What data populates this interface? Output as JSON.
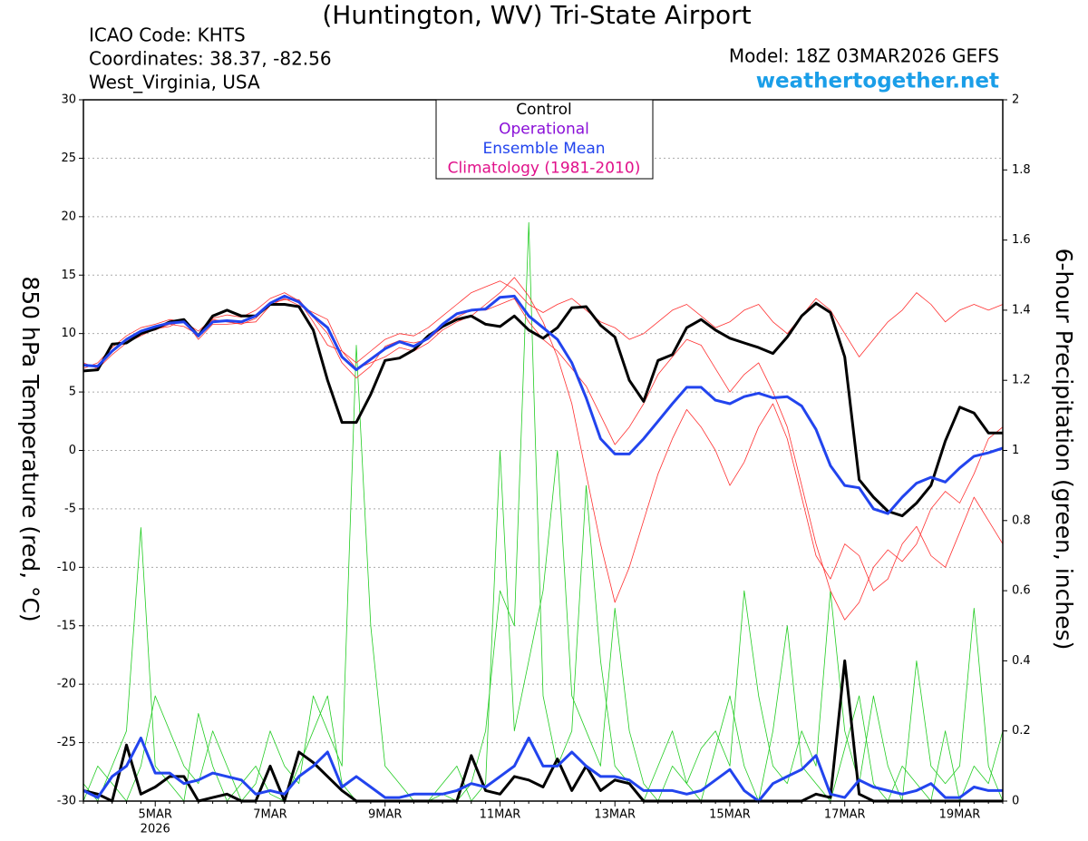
{
  "chart_data": {
    "type": "line",
    "title": "(Huntington, WV) Tri-State Airport",
    "info_left": [
      "ICAO Code: KHTS",
      "Coordinates: 38.37, -82.56",
      "West_Virginia, USA"
    ],
    "model": "Model: 18Z 03MAR2026 GEFS",
    "source": "weathertogether.net",
    "y_label": "850 hPa Temperature (red, °C)",
    "y2_label": "6-hour Precipitation (green, inches)",
    "year_label": "2026",
    "categories": [
      null,
      null,
      null,
      null,
      null,
      "5MAR",
      null,
      null,
      null,
      null,
      null,
      null,
      null,
      "7MAR",
      null,
      null,
      null,
      null,
      null,
      null,
      null,
      "9MAR",
      null,
      null,
      null,
      null,
      null,
      null,
      null,
      "11MAR",
      null,
      null,
      null,
      null,
      null,
      null,
      null,
      "13MAR",
      null,
      null,
      null,
      null,
      null,
      null,
      null,
      "15MAR",
      null,
      null,
      null,
      null,
      null,
      null,
      null,
      "17MAR",
      null,
      null,
      null,
      null,
      null,
      null,
      null,
      "19MAR",
      null,
      null,
      null
    ],
    "ylim": [
      -30,
      30
    ],
    "yticks": [
      -30,
      -25,
      -20,
      -15,
      -10,
      -5,
      0,
      5,
      10,
      15,
      20,
      25,
      30
    ],
    "y2lim": [
      0,
      2
    ],
    "y2ticks": [
      0,
      0.2,
      0.4,
      0.6,
      0.8,
      1,
      1.2,
      1.4,
      1.6,
      1.8,
      2
    ],
    "grid": true,
    "legend": [
      {
        "name": "Control",
        "color": "#000000"
      },
      {
        "name": "Operational",
        "color": "#8a10d8"
      },
      {
        "name": "Ensemble Mean",
        "color": "#2244ee"
      },
      {
        "name": "Climatology (1981-2010)",
        "color": "#e0108a"
      }
    ],
    "series": [
      {
        "color": "#22cc22",
        "axis": "y2",
        "line_width": 0.8,
        "values": [
          0.05,
          0,
          0.1,
          0.2,
          0.78,
          0.1,
          0.05,
          0,
          0.25,
          0.1,
          0,
          0.05,
          0.1,
          0.02,
          0,
          0.1,
          0.2,
          0.3,
          0.05,
          0,
          0,
          0,
          0,
          0,
          0,
          0.02,
          0,
          0.05,
          0.2,
          0.6,
          0.5,
          1.65,
          0.3,
          0.1,
          0.2,
          0.9,
          0.4,
          0.1,
          0.05,
          0,
          0.1,
          0.2,
          0.05,
          0,
          0.15,
          0.3,
          0.1,
          0,
          0.2,
          0.5,
          0.1,
          0.05,
          0,
          0.15,
          0.3,
          0.05,
          0,
          0.1,
          0.05,
          0,
          0.2,
          0,
          0.1,
          0.05,
          0.2
        ]
      },
      {
        "color": "#22cc22",
        "axis": "y2",
        "line_width": 0.8,
        "values": [
          0,
          0.1,
          0.05,
          0,
          0.1,
          0.3,
          0.2,
          0.1,
          0.05,
          0.2,
          0.1,
          0,
          0.05,
          0.2,
          0.1,
          0.05,
          0.3,
          0.2,
          0.1,
          1.3,
          0.5,
          0.1,
          0.05,
          0,
          0,
          0.05,
          0.1,
          0,
          0.05,
          1.0,
          0.2,
          0.4,
          0.6,
          1.0,
          0.3,
          0.2,
          0.1,
          0.55,
          0.2,
          0.05,
          0,
          0.1,
          0.05,
          0.15,
          0.2,
          0.1,
          0.6,
          0.3,
          0.1,
          0.05,
          0.2,
          0.1,
          0.6,
          0.2,
          0.05,
          0.3,
          0.1,
          0,
          0.4,
          0.1,
          0.05,
          0.1,
          0.55,
          0.1,
          0
        ]
      },
      {
        "color": "#ff3030",
        "line_width": 0.8,
        "values": [
          7.0,
          7.5,
          8.8,
          9.8,
          10.5,
          10.8,
          11.2,
          11.0,
          10.2,
          11.3,
          11.6,
          11.4,
          12.0,
          13.0,
          13.5,
          12.8,
          11.0,
          9.0,
          8.5,
          7.5,
          8.5,
          9.5,
          10.0,
          9.8,
          10.5,
          11.5,
          12.5,
          13.5,
          14.0,
          14.5,
          13.8,
          12.5,
          11.8,
          12.5,
          13.0,
          12.0,
          11.0,
          10.5,
          9.5,
          10.0,
          11.0,
          12.0,
          12.5,
          11.5,
          10.5,
          11.0,
          12.0,
          12.5,
          11.0,
          10.0,
          11.5,
          13.0,
          12.0,
          10.0,
          8.0,
          9.5,
          11.0,
          12.0,
          13.5,
          12.5,
          11.0,
          12.0,
          12.5,
          12.0,
          12.5
        ]
      },
      {
        "color": "#ff3030",
        "line_width": 0.8,
        "values": [
          7.5,
          7.0,
          8.2,
          9.2,
          9.8,
          10.4,
          10.6,
          11.2,
          9.5,
          10.8,
          10.8,
          10.9,
          11.0,
          12.4,
          13.0,
          12.4,
          11.8,
          11.2,
          8.5,
          7.0,
          7.5,
          8.0,
          8.8,
          8.5,
          9.2,
          10.3,
          11.0,
          11.5,
          12.5,
          13.5,
          14.8,
          13.2,
          11.0,
          8.0,
          4.0,
          -2.0,
          -8.0,
          -13.0,
          -10.0,
          -6.0,
          -2.0,
          1.0,
          3.5,
          2.0,
          0.0,
          -3.0,
          -1.0,
          2.0,
          4.0,
          1.0,
          -4.0,
          -9.0,
          -11.0,
          -8.0,
          -9.0,
          -12.0,
          -11.0,
          -8.0,
          -6.5,
          -9.0,
          -10.0,
          -7.0,
          -4.0,
          -6.0,
          -8.0
        ]
      },
      {
        "color": "#ff3030",
        "line_width": 0.8,
        "values": [
          7.2,
          7.3,
          8.6,
          9.4,
          10.1,
          10.3,
          10.8,
          10.6,
          9.9,
          11.2,
          11.0,
          10.8,
          11.3,
          12.6,
          12.9,
          12.9,
          11.4,
          10.0,
          7.5,
          6.2,
          7.2,
          8.9,
          9.4,
          9.2,
          9.5,
          10.5,
          11.4,
          12.0,
          12.0,
          12.5,
          13.0,
          11.0,
          9.5,
          8.5,
          7.0,
          5.5,
          3.0,
          0.5,
          2.0,
          4.0,
          6.5,
          8.0,
          9.5,
          9.0,
          7.0,
          5.0,
          6.5,
          7.5,
          5.0,
          2.0,
          -3.0,
          -8.0,
          -12.0,
          -14.5,
          -13.0,
          -10.0,
          -8.5,
          -9.5,
          -8.0,
          -5.0,
          -3.5,
          -4.5,
          -2.0,
          1.0,
          2.0
        ]
      },
      {
        "color": "#000000",
        "axis": "y2",
        "line_width": 3,
        "values": [
          0.03,
          0.02,
          0,
          0.16,
          0.02,
          0.04,
          0.07,
          0.07,
          0,
          0.01,
          0.02,
          0,
          0,
          0.1,
          0,
          0.14,
          0.11,
          0.07,
          0.03,
          0,
          0,
          0,
          0,
          0,
          0,
          0,
          0,
          0.13,
          0.03,
          0.02,
          0.07,
          0.06,
          0.04,
          0.12,
          0.03,
          0.1,
          0.03,
          0.06,
          0.05,
          0,
          0,
          0,
          0,
          0,
          0,
          0,
          0,
          0,
          0,
          0,
          0,
          0.02,
          0.01,
          0.4,
          0.02,
          0,
          0,
          0,
          0,
          0,
          0,
          0,
          0,
          0,
          0
        ]
      },
      {
        "color": "#2244ee",
        "axis": "y2",
        "line_width": 3,
        "values": [
          0.03,
          0.01,
          0.07,
          0.1,
          0.18,
          0.08,
          0.08,
          0.05,
          0.06,
          0.08,
          0.07,
          0.06,
          0.02,
          0.03,
          0.02,
          0.07,
          0.1,
          0.14,
          0.04,
          0.07,
          0.04,
          0.01,
          0.01,
          0.02,
          0.02,
          0.02,
          0.03,
          0.05,
          0.04,
          0.07,
          0.1,
          0.18,
          0.1,
          0.1,
          0.14,
          0.1,
          0.07,
          0.07,
          0.06,
          0.03,
          0.03,
          0.03,
          0.02,
          0.03,
          0.06,
          0.09,
          0.03,
          0,
          0.05,
          0.07,
          0.09,
          0.13,
          0.02,
          0.01,
          0.06,
          0.04,
          0.03,
          0.02,
          0.03,
          0.05,
          0.01,
          0.01,
          0.04,
          0.03,
          0.03
        ]
      },
      {
        "color": "#000000",
        "line_width": 3,
        "values": [
          6.8,
          6.9,
          9.1,
          9.2,
          10.0,
          10.4,
          11.0,
          11.2,
          9.8,
          11.5,
          12.0,
          11.5,
          11.5,
          12.5,
          12.5,
          12.3,
          10.3,
          6.0,
          2.4,
          2.4,
          4.8,
          7.7,
          7.9,
          8.6,
          9.8,
          10.6,
          11.2,
          11.5,
          10.8,
          10.6,
          11.5,
          10.3,
          9.6,
          10.5,
          12.2,
          12.3,
          10.7,
          9.7,
          6.0,
          4.2,
          7.7,
          8.2,
          10.5,
          11.2,
          10.3,
          9.6,
          9.2,
          8.8,
          8.3,
          9.7,
          11.5,
          12.6,
          11.8,
          8.0,
          -2.5,
          -4.0,
          -5.2,
          -5.6,
          -4.5,
          -3.0,
          0.8,
          3.7,
          3.2,
          1.5,
          1.5
        ]
      },
      {
        "color": "#2244ee",
        "line_width": 3,
        "values": [
          7.3,
          7.2,
          8.5,
          9.5,
          10.2,
          10.6,
          10.9,
          11.0,
          9.8,
          11.0,
          11.1,
          11.0,
          11.5,
          12.6,
          13.2,
          12.7,
          11.5,
          10.5,
          8.0,
          6.9,
          7.8,
          8.7,
          9.3,
          8.9,
          9.6,
          10.8,
          11.7,
          12.0,
          12.1,
          13.1,
          13.2,
          11.5,
          10.5,
          9.5,
          7.5,
          4.5,
          1.0,
          -0.3,
          -0.3,
          1.0,
          2.5,
          4.0,
          5.4,
          5.4,
          4.3,
          4.0,
          4.6,
          4.9,
          4.5,
          4.6,
          3.8,
          1.8,
          -1.3,
          -3.0,
          -3.2,
          -5.0,
          -5.4,
          -4.0,
          -2.8,
          -2.3,
          -2.7,
          -1.5,
          -0.5,
          -0.2,
          0.2
        ]
      }
    ]
  }
}
